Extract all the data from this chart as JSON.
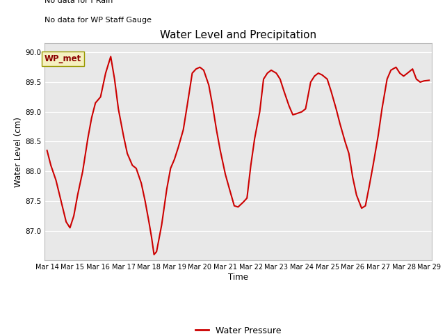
{
  "title": "Water Level and Precipitation",
  "xlabel": "Time",
  "ylabel": "Water Level (cm)",
  "legend_label": "Water Pressure",
  "no_data_text_1": "No data for f Rain",
  "no_data_text_2": "No data for WP Staff Gauge",
  "legend_box_label": "WP_met",
  "ylim": [
    86.5,
    90.15
  ],
  "yticks": [
    87.0,
    87.5,
    88.0,
    88.5,
    89.0,
    89.5,
    90.0
  ],
  "xtick_labels": [
    "Mar 14",
    "Mar 15",
    "Mar 16",
    "Mar 17",
    "Mar 18",
    "Mar 19",
    "Mar 20",
    "Mar 21",
    "Mar 22",
    "Mar 23",
    "Mar 24",
    "Mar 25",
    "Mar 26",
    "Mar 27",
    "Mar 28",
    "Mar 29"
  ],
  "line_color": "#cc0000",
  "line_width": 1.5,
  "axes_bg": "#e8e8e8",
  "grid_color": "#ffffff",
  "x": [
    0.0,
    0.15,
    0.35,
    0.55,
    0.75,
    0.9,
    1.05,
    1.2,
    1.4,
    1.6,
    1.75,
    1.9,
    2.1,
    2.3,
    2.5,
    2.65,
    2.8,
    3.0,
    3.15,
    3.35,
    3.5,
    3.7,
    3.85,
    4.0,
    4.1,
    4.2,
    4.3,
    4.5,
    4.7,
    4.85,
    5.0,
    5.15,
    5.35,
    5.5,
    5.7,
    5.85,
    6.0,
    6.15,
    6.35,
    6.5,
    6.65,
    6.8,
    7.0,
    7.15,
    7.35,
    7.5,
    7.7,
    7.85,
    8.0,
    8.15,
    8.35,
    8.5,
    8.65,
    8.8,
    9.0,
    9.15,
    9.3,
    9.5,
    9.65,
    9.8,
    10.0,
    10.15,
    10.35,
    10.5,
    10.65,
    10.8,
    11.0,
    11.15,
    11.35,
    11.5,
    11.7,
    11.85,
    12.0,
    12.15,
    12.35,
    12.5,
    12.65,
    12.8,
    13.0,
    13.15,
    13.35,
    13.5,
    13.7,
    13.85,
    14.0,
    14.15,
    14.35,
    14.5,
    14.65,
    14.8,
    15.0
  ],
  "y": [
    88.35,
    88.1,
    87.85,
    87.5,
    87.15,
    87.05,
    87.25,
    87.6,
    88.0,
    88.55,
    88.9,
    89.15,
    89.25,
    89.65,
    89.93,
    89.55,
    89.05,
    88.6,
    88.3,
    88.1,
    88.05,
    87.8,
    87.5,
    87.15,
    86.9,
    86.6,
    86.65,
    87.1,
    87.7,
    88.05,
    88.2,
    88.4,
    88.7,
    89.1,
    89.65,
    89.72,
    89.75,
    89.7,
    89.45,
    89.1,
    88.7,
    88.35,
    87.95,
    87.72,
    87.42,
    87.4,
    87.48,
    87.55,
    88.1,
    88.55,
    89.0,
    89.55,
    89.65,
    89.7,
    89.65,
    89.55,
    89.35,
    89.1,
    88.95,
    88.97,
    89.0,
    89.05,
    89.5,
    89.6,
    89.65,
    89.62,
    89.55,
    89.35,
    89.05,
    88.8,
    88.5,
    88.3,
    87.9,
    87.6,
    87.38,
    87.42,
    87.75,
    88.1,
    88.6,
    89.05,
    89.55,
    89.7,
    89.75,
    89.65,
    89.6,
    89.65,
    89.72,
    89.55,
    89.5,
    89.52,
    89.53
  ]
}
